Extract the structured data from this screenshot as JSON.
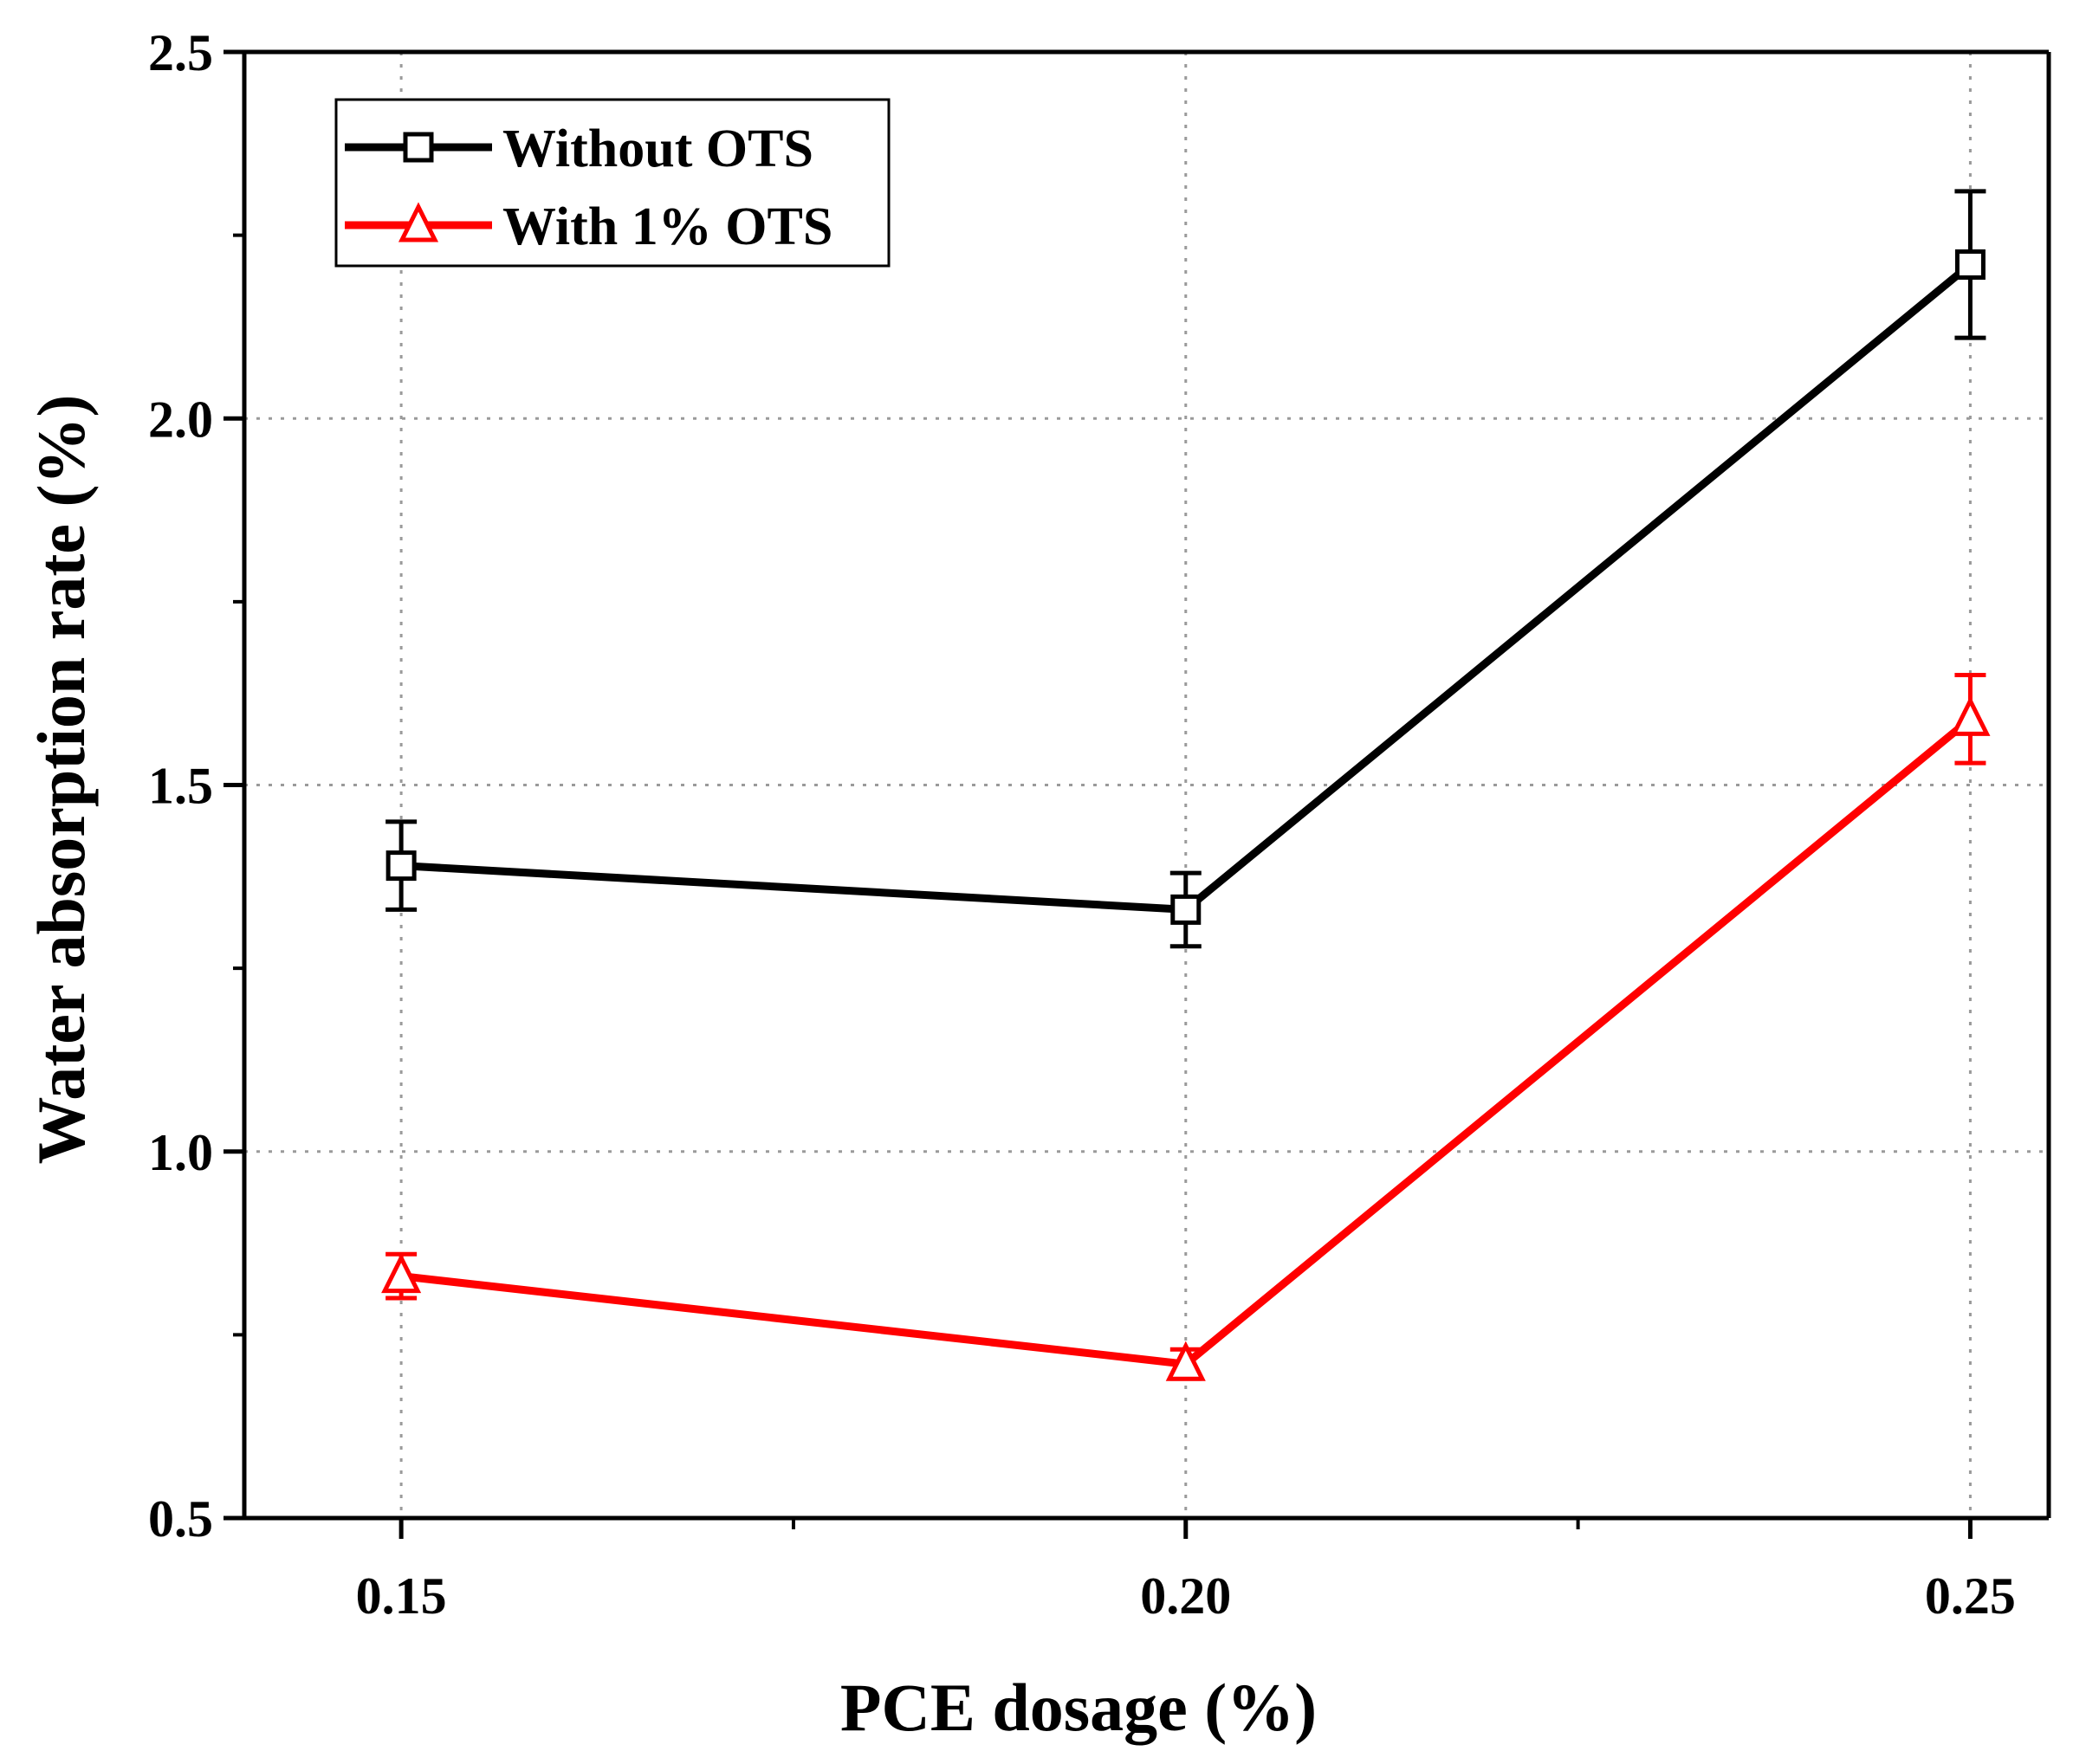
{
  "chart_data": {
    "type": "line",
    "title": "",
    "xlabel": "PCE dosage (%)",
    "ylabel": "Water absorption rate (%)",
    "x": [
      0.15,
      0.2,
      0.25
    ],
    "x_tick_labels": [
      "0.15",
      "0.20",
      "0.25"
    ],
    "xlim": [
      0.14,
      0.255
    ],
    "ylim": [
      0.5,
      2.5
    ],
    "y_ticks": [
      0.5,
      1.0,
      1.5,
      2.0,
      2.5
    ],
    "y_tick_labels": [
      "0.5",
      "1.0",
      "1.5",
      "2.0",
      "2.5"
    ],
    "grid": true,
    "legend_position": "top-left",
    "series": [
      {
        "name": "Without OTS",
        "color": "#000000",
        "marker": "square",
        "values": [
          1.39,
          1.33,
          2.21
        ],
        "errors": [
          0.06,
          0.05,
          0.1
        ]
      },
      {
        "name": "With 1% OTS",
        "color": "#ff0000",
        "marker": "triangle",
        "values": [
          0.83,
          0.71,
          1.59
        ],
        "errors": [
          0.03,
          0.02,
          0.06
        ]
      }
    ]
  }
}
